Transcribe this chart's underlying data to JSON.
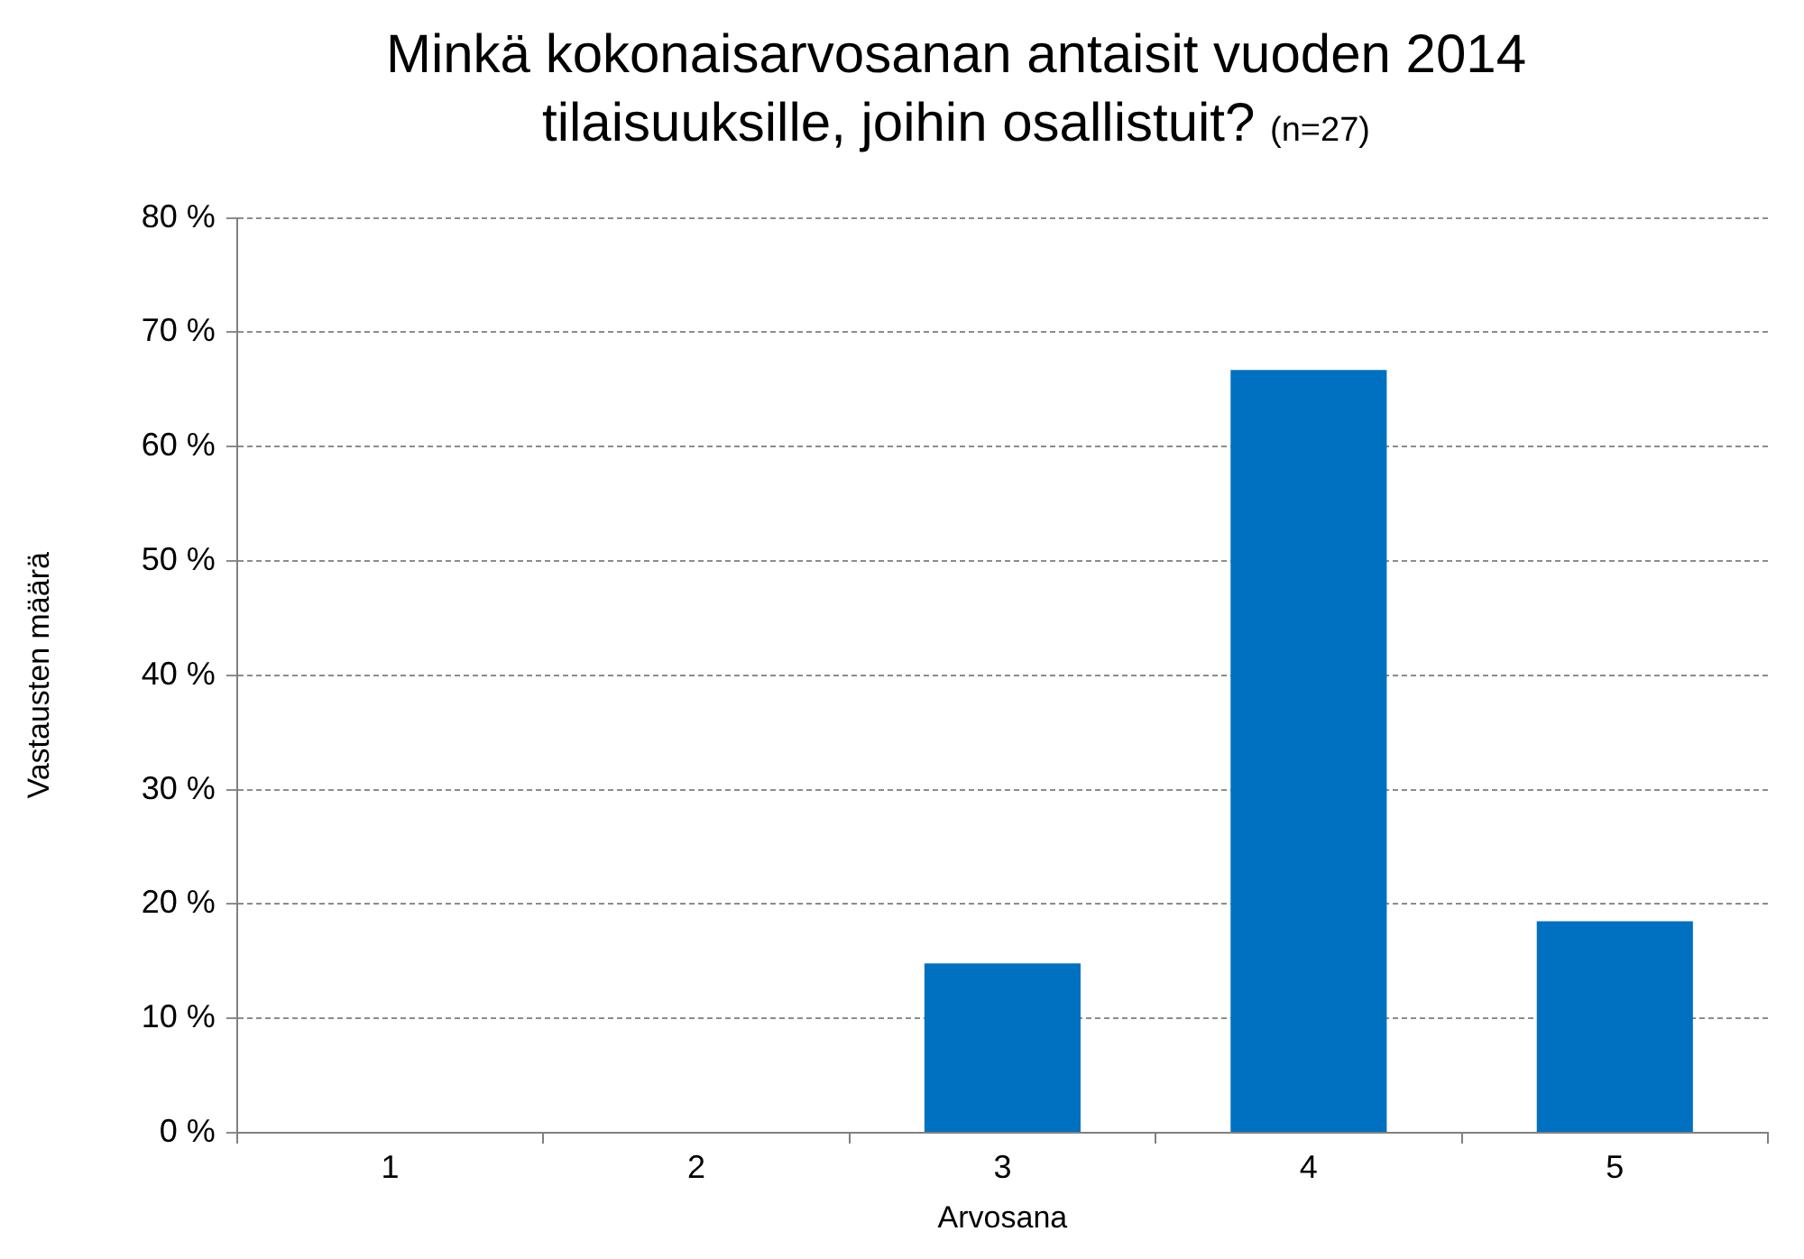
{
  "chart_data": {
    "type": "bar",
    "title": "Minkä kokonaisarvosanan antaisit vuoden 2014 tilaisuuksille, joihin osallistuit?",
    "subtitle": "(n=27)",
    "xlabel": "Arvosana",
    "ylabel": "Vastausten määrä",
    "categories": [
      "1",
      "2",
      "3",
      "4",
      "5"
    ],
    "values": [
      0,
      0,
      14.8,
      66.7,
      18.5
    ],
    "color": "#0070c0",
    "ylim": [
      0,
      80
    ],
    "yticks": [
      {
        "value": 0,
        "label": "0 %"
      },
      {
        "value": 10,
        "label": "10 %"
      },
      {
        "value": 20,
        "label": "20 %"
      },
      {
        "value": 30,
        "label": "30 %"
      },
      {
        "value": 40,
        "label": "40 %"
      },
      {
        "value": 50,
        "label": "50 %"
      },
      {
        "value": 60,
        "label": "60 %"
      },
      {
        "value": 70,
        "label": "70 %"
      },
      {
        "value": 80,
        "label": "80 %"
      }
    ],
    "grid": "y",
    "legend": false
  }
}
